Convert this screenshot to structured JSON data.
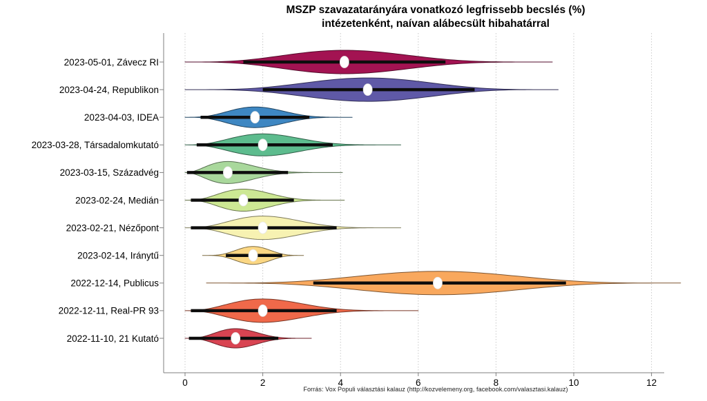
{
  "chart_data": {
    "type": "violin",
    "title": "MSZP szavazatarányára vonatkozó legfrissebb becslés (%)",
    "subtitle": "intézetenként, naívan alábecsült hibahatárral",
    "xlabel": "",
    "ylabel": "",
    "x_ticks": [
      0,
      2,
      4,
      6,
      8,
      10,
      12
    ],
    "xlim": [
      0,
      13.2
    ],
    "grid": "dotted-vertical",
    "legend": "none",
    "source": "Forrás: Vox Populi választási kalauz (http://kozvelemeny.org, facebook.com/valasztasi.kalauz)",
    "colors": {
      "grid": "#c8c8c8",
      "axis": "#7f7f7f",
      "interval_bar": "#0d0d0d",
      "estimate_dot": "#ffffff"
    },
    "rows": [
      {
        "label": "2023-05-01, Závecz RI",
        "color": "#a31352",
        "estimate": 4.1,
        "interval": [
          1.5,
          6.7
        ],
        "range": [
          0,
          9.45
        ],
        "hw": 17
      },
      {
        "label": "2023-04-24, Republikon",
        "color": "#5f59a7",
        "estimate": 4.7,
        "interval": [
          2.0,
          7.45
        ],
        "range": [
          0,
          9.6
        ],
        "hw": 17
      },
      {
        "label": "2023-04-03, IDEA",
        "color": "#3e87c2",
        "estimate": 1.8,
        "interval": [
          0.4,
          3.2
        ],
        "range": [
          0,
          4.3
        ],
        "hw": 15
      },
      {
        "label": "2023-03-28, Társadalomkutató",
        "color": "#5dbc8e",
        "estimate": 2.0,
        "interval": [
          0.3,
          3.8
        ],
        "range": [
          0,
          5.55
        ],
        "hw": 16
      },
      {
        "label": "2023-03-15, Századvég",
        "color": "#a9d89c",
        "estimate": 1.1,
        "interval": [
          0.05,
          2.65
        ],
        "range": [
          0,
          4.05
        ],
        "hw": 16
      },
      {
        "label": "2023-02-24, Medián",
        "color": "#cde894",
        "estimate": 1.5,
        "interval": [
          0.15,
          2.8
        ],
        "range": [
          0,
          4.1
        ],
        "hw": 16
      },
      {
        "label": "2023-02-21, Nézőpont",
        "color": "#f7f2b2",
        "estimate": 2.0,
        "interval": [
          0.15,
          3.9
        ],
        "range": [
          0,
          5.55
        ],
        "hw": 17
      },
      {
        "label": "2023-02-14, Iránytű",
        "color": "#fbd784",
        "estimate": 1.75,
        "interval": [
          1.05,
          2.5
        ],
        "range": [
          0.45,
          3.05
        ],
        "hw": 13
      },
      {
        "label": "2022-12-14, Publicus",
        "color": "#f9a85d",
        "estimate": 6.5,
        "interval": [
          3.3,
          9.8
        ],
        "range": [
          0.55,
          12.75
        ],
        "hw": 17
      },
      {
        "label": "2022-12-11, Real-PR 93",
        "color": "#f0694a",
        "estimate": 2.0,
        "interval": [
          0.15,
          3.9
        ],
        "range": [
          0,
          6.0
        ],
        "hw": 17
      },
      {
        "label": "2022-11-10, 21 Kutató",
        "color": "#d94452",
        "estimate": 1.3,
        "interval": [
          0.1,
          2.4
        ],
        "range": [
          0,
          3.25
        ],
        "hw": 14
      }
    ]
  }
}
